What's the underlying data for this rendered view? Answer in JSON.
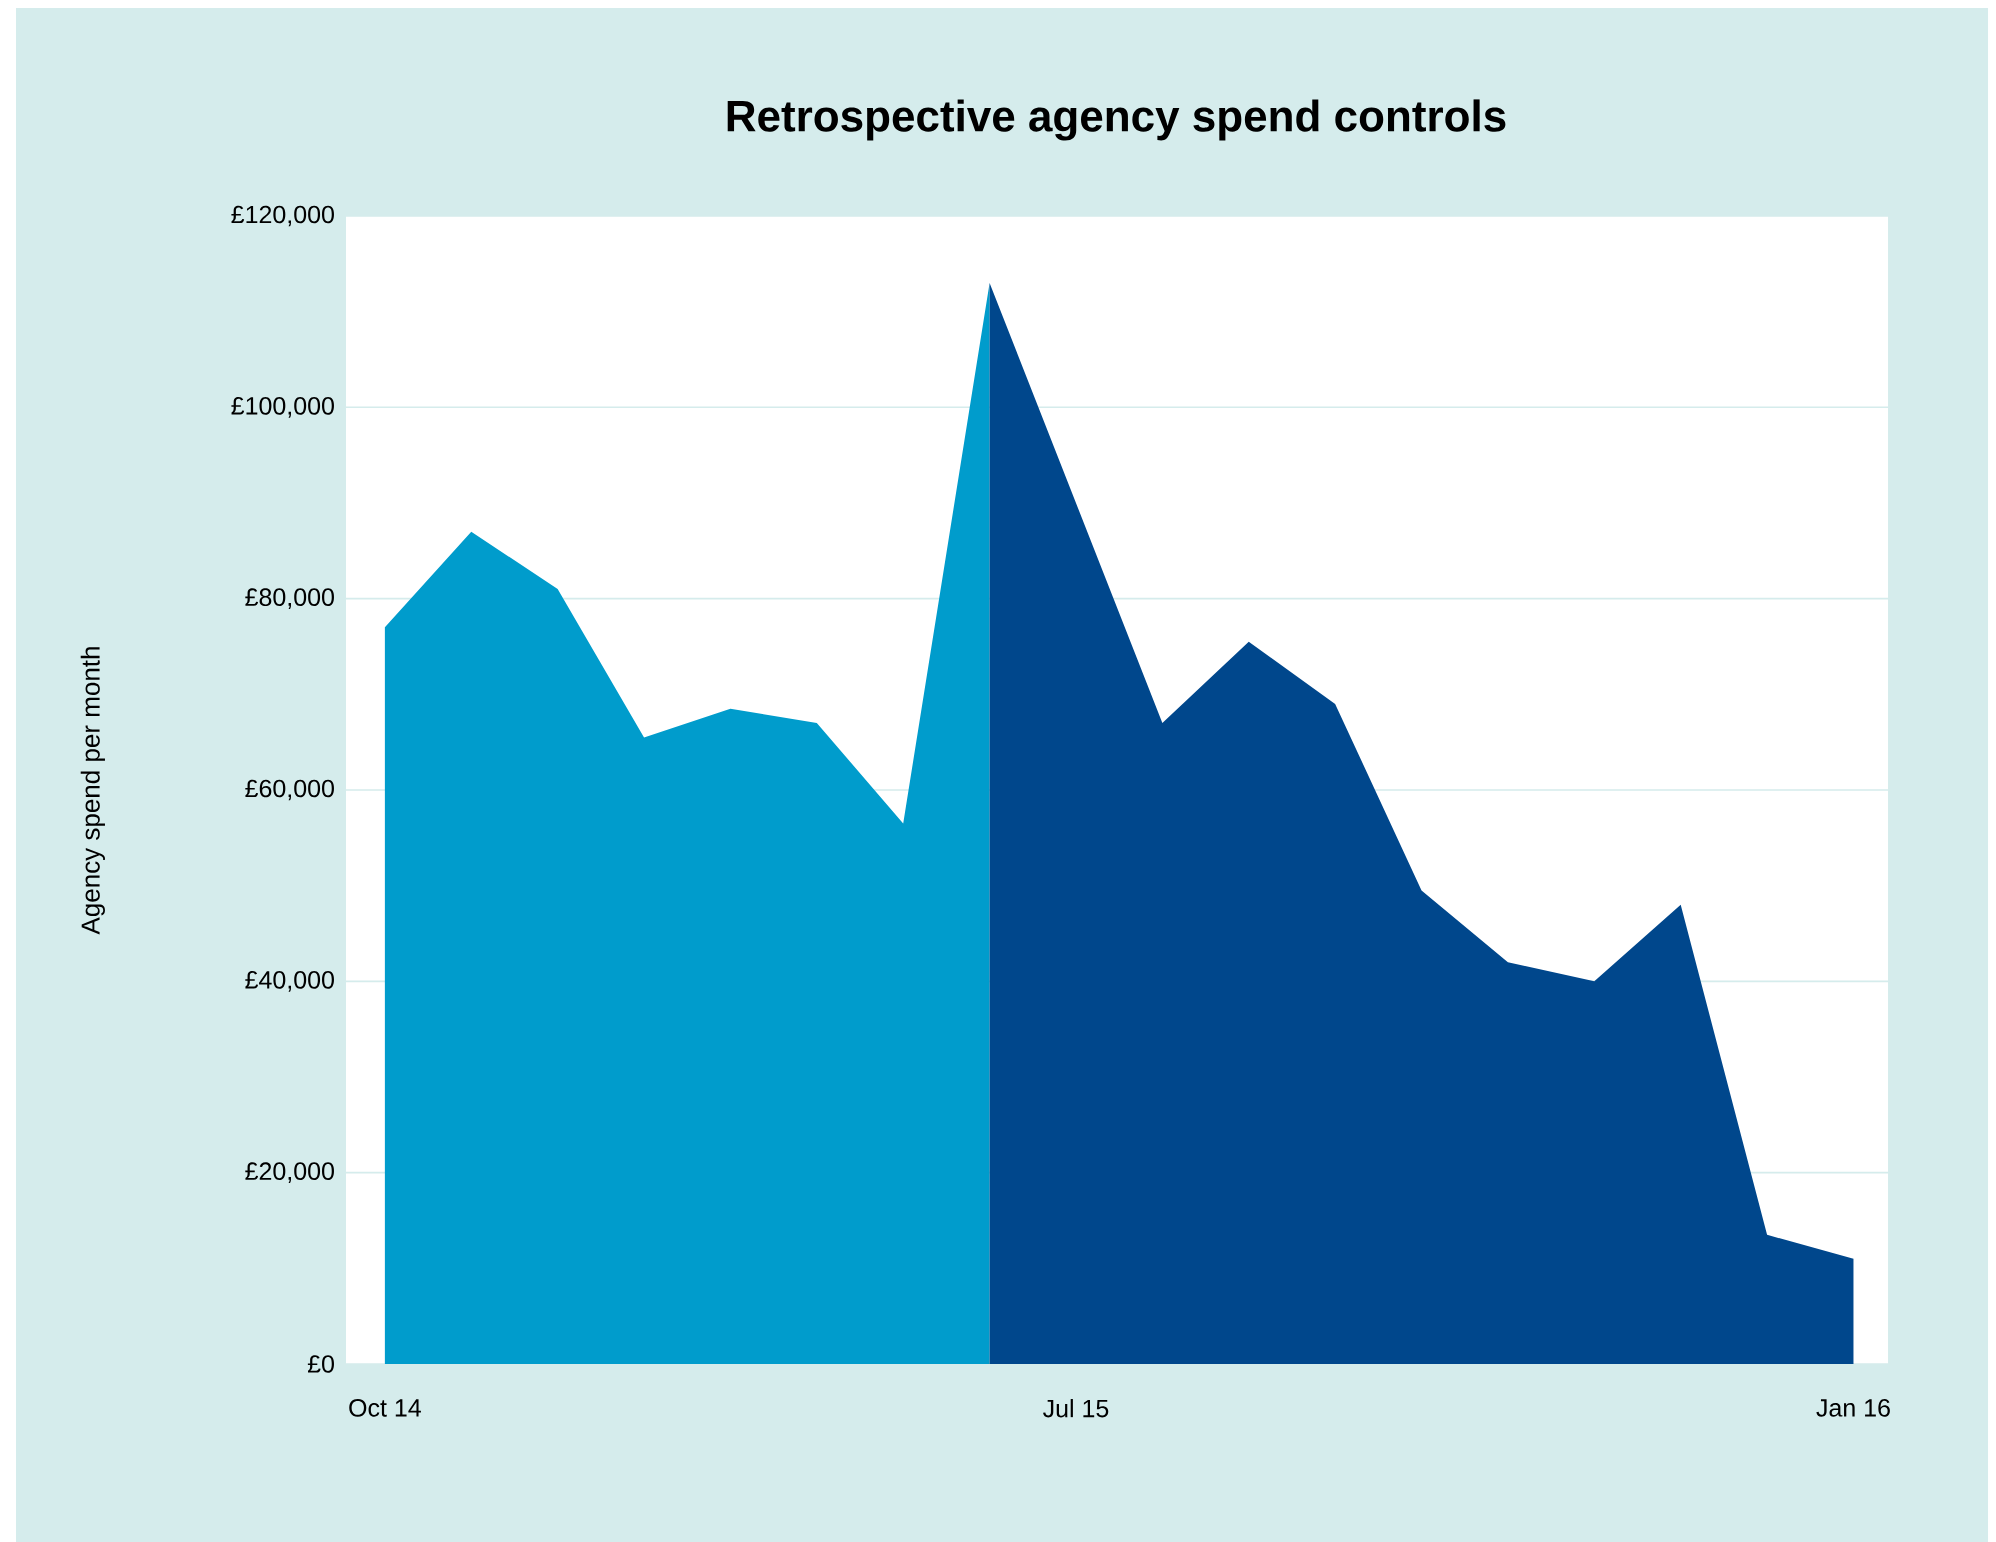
{
  "chart_data": {
    "type": "area",
    "title": "Retrospective agency spend controls",
    "ylabel": "Agency spend per month",
    "categories": [
      "Oct 14",
      null,
      null,
      null,
      null,
      null,
      null,
      null,
      "Jul 15",
      null,
      null,
      null,
      null,
      null,
      null,
      null,
      null,
      "Jan 16"
    ],
    "ylim": [
      0,
      120000
    ],
    "yticks": [
      {
        "value": 0,
        "label": "£0"
      },
      {
        "value": 20000,
        "label": "£20,000"
      },
      {
        "value": 40000,
        "label": "£40,000"
      },
      {
        "value": 60000,
        "label": "£60,000"
      },
      {
        "value": 80000,
        "label": "£80,000"
      },
      {
        "value": 100000,
        "label": "£100,000"
      },
      {
        "value": 120000,
        "label": "£120,000"
      }
    ],
    "grid": "y",
    "series": [
      {
        "color": "#009ccc",
        "values": [
          77000,
          87000,
          81000,
          65500,
          68500,
          67000,
          56500,
          113000,
          null,
          null,
          null,
          null,
          null,
          null,
          null,
          null,
          null,
          null
        ]
      },
      {
        "color": "#00478c",
        "values": [
          null,
          null,
          null,
          null,
          null,
          null,
          null,
          113000,
          null,
          67000,
          75500,
          69000,
          49500,
          42000,
          40000,
          48000,
          13500,
          11000
        ]
      }
    ]
  }
}
